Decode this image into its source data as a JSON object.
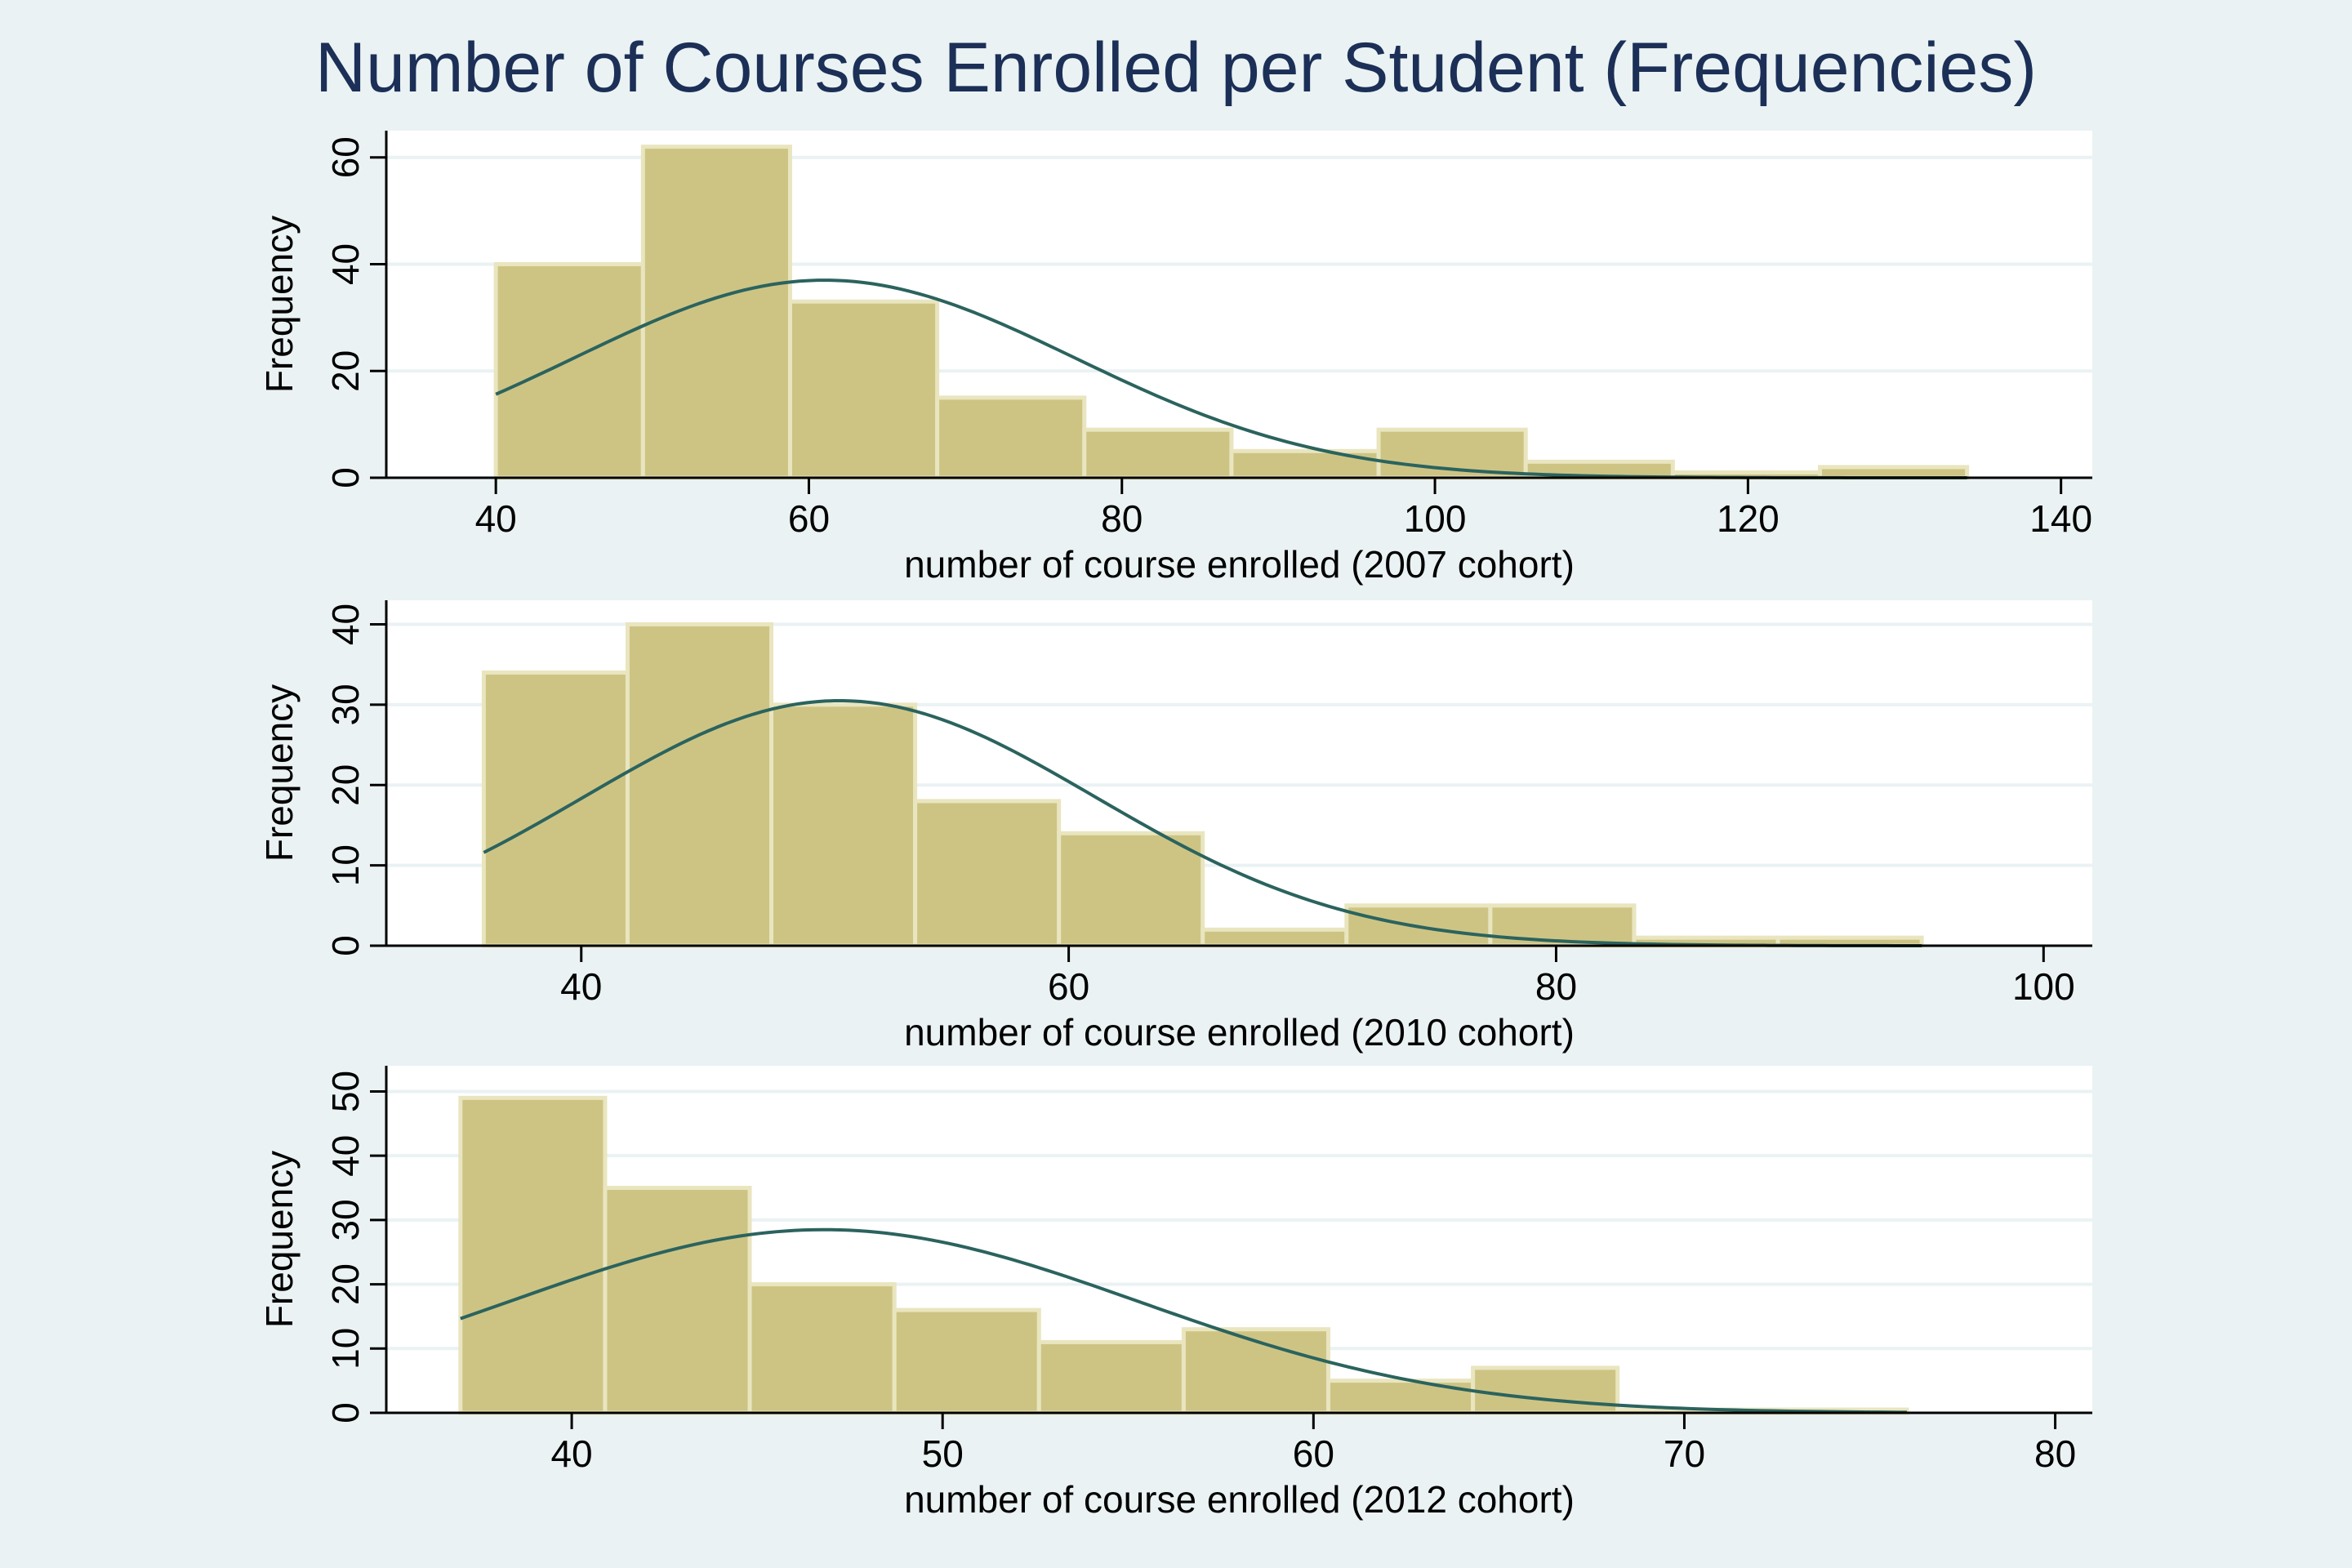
{
  "title": "Number of Courses Enrolled per Student (Frequencies)",
  "colors": {
    "page_background": "#eaf2f3",
    "plot_background": "#ffffff",
    "bar_fill": "#cdc484",
    "bar_stroke": "#e9e5bf",
    "curve": "#2b635e",
    "gridline": "#eaf2f3",
    "axis": "#000000",
    "title": "#1b2f57"
  },
  "chart_data": [
    {
      "type": "bar",
      "subtype": "histogram-with-normal-curve",
      "title": "",
      "xlabel": "number of course enrolled (2007 cohort)",
      "ylabel": "Frequency",
      "xlim": [
        33,
        142
      ],
      "ylim": [
        0,
        65
      ],
      "xticks": [
        40,
        60,
        80,
        100,
        120,
        140
      ],
      "yticks": [
        0,
        20,
        40,
        60
      ],
      "grid": true,
      "bins": [
        {
          "x0": 40,
          "x1": 49.4,
          "count": 40
        },
        {
          "x0": 49.4,
          "x1": 58.8,
          "count": 62
        },
        {
          "x0": 58.8,
          "x1": 68.2,
          "count": 33
        },
        {
          "x0": 68.2,
          "x1": 77.6,
          "count": 15
        },
        {
          "x0": 77.6,
          "x1": 87.0,
          "count": 9
        },
        {
          "x0": 87.0,
          "x1": 96.4,
          "count": 5
        },
        {
          "x0": 96.4,
          "x1": 105.8,
          "count": 9
        },
        {
          "x0": 105.8,
          "x1": 115.2,
          "count": 3
        },
        {
          "x0": 115.2,
          "x1": 124.6,
          "count": 1
        },
        {
          "x0": 124.6,
          "x1": 134.0,
          "count": 2
        }
      ],
      "normal_curve": {
        "mean": 61,
        "sd": 16,
        "peak": 37,
        "x_range": [
          40,
          134
        ]
      }
    },
    {
      "type": "bar",
      "subtype": "histogram-with-normal-curve",
      "title": "",
      "xlabel": "number of course enrolled (2010 cohort)",
      "ylabel": "Frequency",
      "xlim": [
        32,
        102
      ],
      "ylim": [
        0,
        43
      ],
      "xticks": [
        40,
        60,
        80,
        100
      ],
      "yticks": [
        0,
        10,
        20,
        30,
        40
      ],
      "grid": true,
      "bins": [
        {
          "x0": 36.0,
          "x1": 41.9,
          "count": 34
        },
        {
          "x0": 41.9,
          "x1": 47.8,
          "count": 40
        },
        {
          "x0": 47.8,
          "x1": 53.7,
          "count": 30
        },
        {
          "x0": 53.7,
          "x1": 59.6,
          "count": 18
        },
        {
          "x0": 59.6,
          "x1": 65.5,
          "count": 14
        },
        {
          "x0": 65.5,
          "x1": 71.4,
          "count": 2
        },
        {
          "x0": 71.4,
          "x1": 77.3,
          "count": 5
        },
        {
          "x0": 77.3,
          "x1": 83.2,
          "count": 5
        },
        {
          "x0": 83.2,
          "x1": 89.1,
          "count": 1
        },
        {
          "x0": 89.1,
          "x1": 95.0,
          "count": 1
        }
      ],
      "normal_curve": {
        "mean": 50.6,
        "sd": 10.5,
        "peak": 30.5,
        "x_range": [
          36,
          95
        ]
      }
    },
    {
      "type": "bar",
      "subtype": "histogram-with-normal-curve",
      "title": "",
      "xlabel": "number of course enrolled (2012 cohort)",
      "ylabel": "Frequency",
      "xlim": [
        35,
        81
      ],
      "ylim": [
        0,
        54
      ],
      "xticks": [
        40,
        50,
        60,
        70,
        80
      ],
      "yticks": [
        0,
        10,
        20,
        30,
        40,
        50
      ],
      "grid": true,
      "bins": [
        {
          "x0": 37.0,
          "x1": 40.9,
          "count": 49
        },
        {
          "x0": 40.9,
          "x1": 44.8,
          "count": 35
        },
        {
          "x0": 44.8,
          "x1": 48.7,
          "count": 20
        },
        {
          "x0": 48.7,
          "x1": 52.6,
          "count": 16
        },
        {
          "x0": 52.6,
          "x1": 56.5,
          "count": 11
        },
        {
          "x0": 56.5,
          "x1": 60.4,
          "count": 13
        },
        {
          "x0": 60.4,
          "x1": 64.3,
          "count": 5
        },
        {
          "x0": 64.3,
          "x1": 68.2,
          "count": 7
        },
        {
          "x0": 68.2,
          "x1": 72.1,
          "count": 0.5
        },
        {
          "x0": 72.1,
          "x1": 76.0,
          "count": 0.5
        }
      ],
      "normal_curve": {
        "mean": 46.8,
        "sd": 8.5,
        "peak": 28.5,
        "x_range": [
          37,
          76
        ]
      }
    }
  ]
}
